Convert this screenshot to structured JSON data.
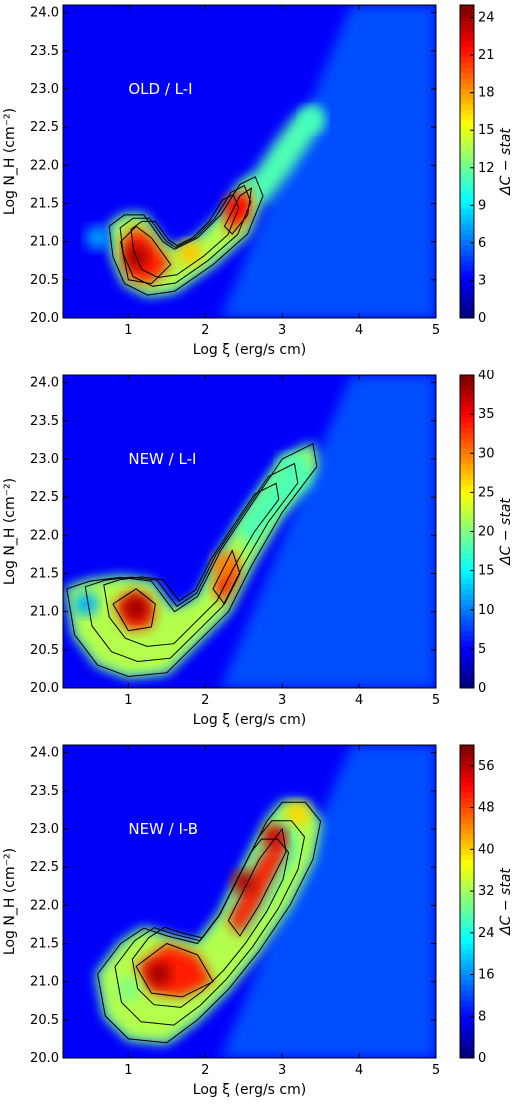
{
  "chart_data": [
    {
      "type": "heatmap",
      "panel_label": "OLD / L-I",
      "xlabel": "Log ξ (erg/s cm)",
      "ylabel": "Log N_H (cm⁻²)",
      "colorbar_label": "ΔC − stat",
      "xlim": [
        0.15,
        5.0
      ],
      "ylim": [
        20.0,
        24.1
      ],
      "xticks": [
        "1",
        "2",
        "3",
        "4",
        "5"
      ],
      "yticks": [
        "20.0",
        "20.5",
        "21.0",
        "21.5",
        "22.0",
        "22.5",
        "23.0",
        "23.5",
        "24.0"
      ],
      "cbar_range": [
        0,
        25
      ],
      "cbar_ticks": [
        "0",
        "3",
        "6",
        "9",
        "12",
        "15",
        "18",
        "21",
        "24"
      ],
      "regions": [
        {
          "x": 1.1,
          "y": 20.8,
          "value": 24.0
        },
        {
          "x": 2.4,
          "y": 21.45,
          "value": 22.0
        },
        {
          "x": 1.8,
          "y": 20.85,
          "value": 17.0
        },
        {
          "x": 3.4,
          "y": 22.6,
          "value": 11.0
        },
        {
          "x": 0.6,
          "y": 21.05,
          "value": 7.0
        }
      ]
    },
    {
      "type": "heatmap",
      "panel_label": "NEW / L-I",
      "xlabel": "Log ξ (erg/s cm)",
      "ylabel": "Log N_H (cm⁻²)",
      "colorbar_label": "ΔC − stat",
      "xlim": [
        0.15,
        5.0
      ],
      "ylim": [
        20.0,
        24.1
      ],
      "xticks": [
        "1",
        "2",
        "3",
        "4",
        "5"
      ],
      "yticks": [
        "20.0",
        "20.5",
        "21.0",
        "21.5",
        "22.0",
        "22.5",
        "23.0",
        "23.5",
        "24.0"
      ],
      "cbar_range": [
        0,
        40
      ],
      "cbar_ticks": [
        "0",
        "5",
        "10",
        "15",
        "20",
        "25",
        "30",
        "35",
        "40"
      ],
      "regions": [
        {
          "x": 1.1,
          "y": 21.05,
          "value": 39.0
        },
        {
          "x": 2.25,
          "y": 21.6,
          "value": 30.0
        },
        {
          "x": 1.7,
          "y": 20.85,
          "value": 22.0
        },
        {
          "x": 3.1,
          "y": 22.9,
          "value": 18.0
        },
        {
          "x": 0.45,
          "y": 21.1,
          "value": 12.0
        }
      ]
    },
    {
      "type": "heatmap",
      "panel_label": "NEW / I-B",
      "xlabel": "Log ξ (erg/s cm)",
      "ylabel": "Log N_H (cm⁻²)",
      "colorbar_label": "ΔC − stat",
      "xlim": [
        0.15,
        5.0
      ],
      "ylim": [
        20.0,
        24.1
      ],
      "xticks": [
        "1",
        "2",
        "3",
        "4",
        "5"
      ],
      "yticks": [
        "20.0",
        "20.5",
        "21.0",
        "21.5",
        "22.0",
        "22.5",
        "23.0",
        "23.5",
        "24.0"
      ],
      "cbar_range": [
        0,
        60
      ],
      "cbar_ticks": [
        "0",
        "8",
        "16",
        "24",
        "32",
        "40",
        "48",
        "56"
      ],
      "regions": [
        {
          "x": 1.4,
          "y": 21.1,
          "value": 58.0
        },
        {
          "x": 2.5,
          "y": 22.3,
          "value": 57.0
        },
        {
          "x": 2.9,
          "y": 22.9,
          "value": 55.0
        },
        {
          "x": 1.0,
          "y": 20.9,
          "value": 30.0
        },
        {
          "x": 3.2,
          "y": 23.2,
          "value": 40.0
        }
      ]
    }
  ]
}
